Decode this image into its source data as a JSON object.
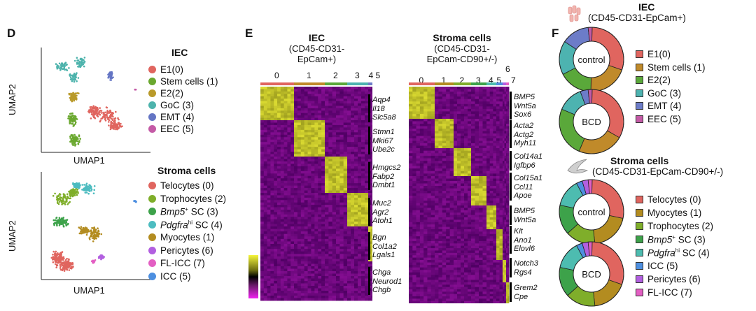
{
  "panels": {
    "d": "D",
    "e": "E",
    "f": "F"
  },
  "umap": {
    "xlabel": "UMAP1",
    "ylabel": "UMAP2",
    "iec_title": "IEC",
    "iec_legend": [
      {
        "label": "E1(0)",
        "color": "#e0655f"
      },
      {
        "label": "Stem cells (1)",
        "color": "#6aa82f"
      },
      {
        "label": "E2(2)",
        "color": "#b99a2a"
      },
      {
        "label": "GoC (3)",
        "color": "#4db3ac"
      },
      {
        "label": "EMT (4)",
        "color": "#6475c4"
      },
      {
        "label": "EEC (5)",
        "color": "#c45aa6"
      }
    ],
    "stroma_title": "Stroma cells",
    "stroma_legend": [
      {
        "pre": "Telocytes (0)",
        "it": "",
        "sup": "",
        "post": "",
        "color": "#e0655f"
      },
      {
        "pre": "Trophocytes (2)",
        "it": "",
        "sup": "",
        "post": "",
        "color": "#7fae2a"
      },
      {
        "pre": "",
        "it": "Bmp5",
        "sup": "+",
        "post": " SC (3)",
        "color": "#3da24a"
      },
      {
        "pre": "",
        "it": "Pdgfra",
        "sup": "hi",
        "post": " SC (4)",
        "color": "#4dbcc0"
      },
      {
        "pre": "Myocytes (1)",
        "it": "",
        "sup": "",
        "post": "",
        "color": "#b38c20"
      },
      {
        "pre": "Pericytes (6)",
        "it": "",
        "sup": "",
        "post": "",
        "color": "#b25fe0"
      },
      {
        "pre": "FL-ICC (7)",
        "it": "",
        "sup": "",
        "post": "",
        "color": "#e35fc3"
      },
      {
        "pre": "ICC (5)",
        "it": "",
        "sup": "",
        "post": "",
        "color": "#4d8fe0"
      }
    ]
  },
  "heatmap": {
    "iec_title": "IEC",
    "iec_sub1": "(CD45-CD31-",
    "iec_sub2": "EpCam+)",
    "iec_clusters": [
      "0",
      "1",
      "2",
      "3",
      "4",
      "5"
    ],
    "iec_genes": [
      [
        "Aqp4",
        "Il18",
        "Slc5a8"
      ],
      [
        "Stmn1",
        "Mki67",
        "Ube2c"
      ],
      [
        "Hmgcs2",
        "Fabp2",
        "Dmbt1"
      ],
      [
        "Muc2",
        "Agr2",
        "Atoh1"
      ],
      [
        "Bgn",
        "Col1a2",
        "Lgals1"
      ],
      [
        "Chga",
        "Neurod1",
        "Chgb"
      ]
    ],
    "stroma_title": "Stroma cells",
    "stroma_sub1": "(CD45-CD31-",
    "stroma_sub2": "EpCam-CD90+/-)",
    "stroma_clusters": [
      "0",
      "1",
      "2",
      "3",
      "4",
      "5",
      "6",
      "7"
    ],
    "stroma_genes": [
      [
        "BMP5",
        "Wnt5a",
        "Sox6"
      ],
      [
        "Acta2",
        "Actg2",
        "Myh11"
      ],
      [
        "Col14a1",
        "Igfbp6"
      ],
      [
        "Col15a1",
        "Ccl11",
        "Apoe"
      ],
      [
        "BMP5",
        "Wnt5a"
      ],
      [
        "Kit",
        "Ano1",
        "Elovl6"
      ],
      [
        "Notch3",
        "Rgs4"
      ],
      [
        "Grem2",
        "Cpe"
      ]
    ]
  },
  "donuts": {
    "iec_title": "IEC",
    "iec_sub": "(CD45-CD31-EpCam+)",
    "iec_colors": [
      "#e0655f",
      "#c08a2a",
      "#5aa83a",
      "#4db3b0",
      "#6c7cc8",
      "#c45aa6"
    ],
    "iec_control": [
      30,
      20,
      17,
      17,
      14,
      2
    ],
    "iec_bcd": [
      33,
      23,
      25,
      13,
      4,
      2
    ],
    "iec_legend": [
      "E1(0)",
      "Stem cells (1)",
      "E2(2)",
      "GoC (3)",
      "EMT (4)",
      "EEC (5)"
    ],
    "stroma_title": "Stroma cells",
    "stroma_sub": "(CD45-CD31-EpCam-CD90+/-)",
    "stroma_colors": [
      "#e0655f",
      "#b38c20",
      "#7fae2a",
      "#3da24a",
      "#4dbcb0",
      "#4d8fe0",
      "#b25fe0",
      "#e35fc3"
    ],
    "stroma_control": [
      28,
      20,
      15,
      15,
      14,
      3,
      3,
      2
    ],
    "stroma_bcd": [
      30,
      18,
      15,
      15,
      14,
      3,
      3,
      2
    ],
    "stroma_legend": [
      {
        "pre": "Telocytes (0)",
        "it": "",
        "sup": "",
        "post": ""
      },
      {
        "pre": "Myocytes (1)",
        "it": "",
        "sup": "",
        "post": ""
      },
      {
        "pre": "Trophocytes (2)",
        "it": "",
        "sup": "",
        "post": ""
      },
      {
        "pre": "",
        "it": "Bmp5",
        "sup": "+",
        "post": " SC (3)"
      },
      {
        "pre": "",
        "it": "Pdgfra",
        "sup": "hi",
        "post": " SC (4)"
      },
      {
        "pre": "ICC (5)",
        "it": "",
        "sup": "",
        "post": ""
      },
      {
        "pre": "Pericytes (6)",
        "it": "",
        "sup": "",
        "post": ""
      },
      {
        "pre": "FL-ICC (7)",
        "it": "",
        "sup": "",
        "post": ""
      }
    ],
    "control_label": "control",
    "bcd_label": "BCD"
  }
}
